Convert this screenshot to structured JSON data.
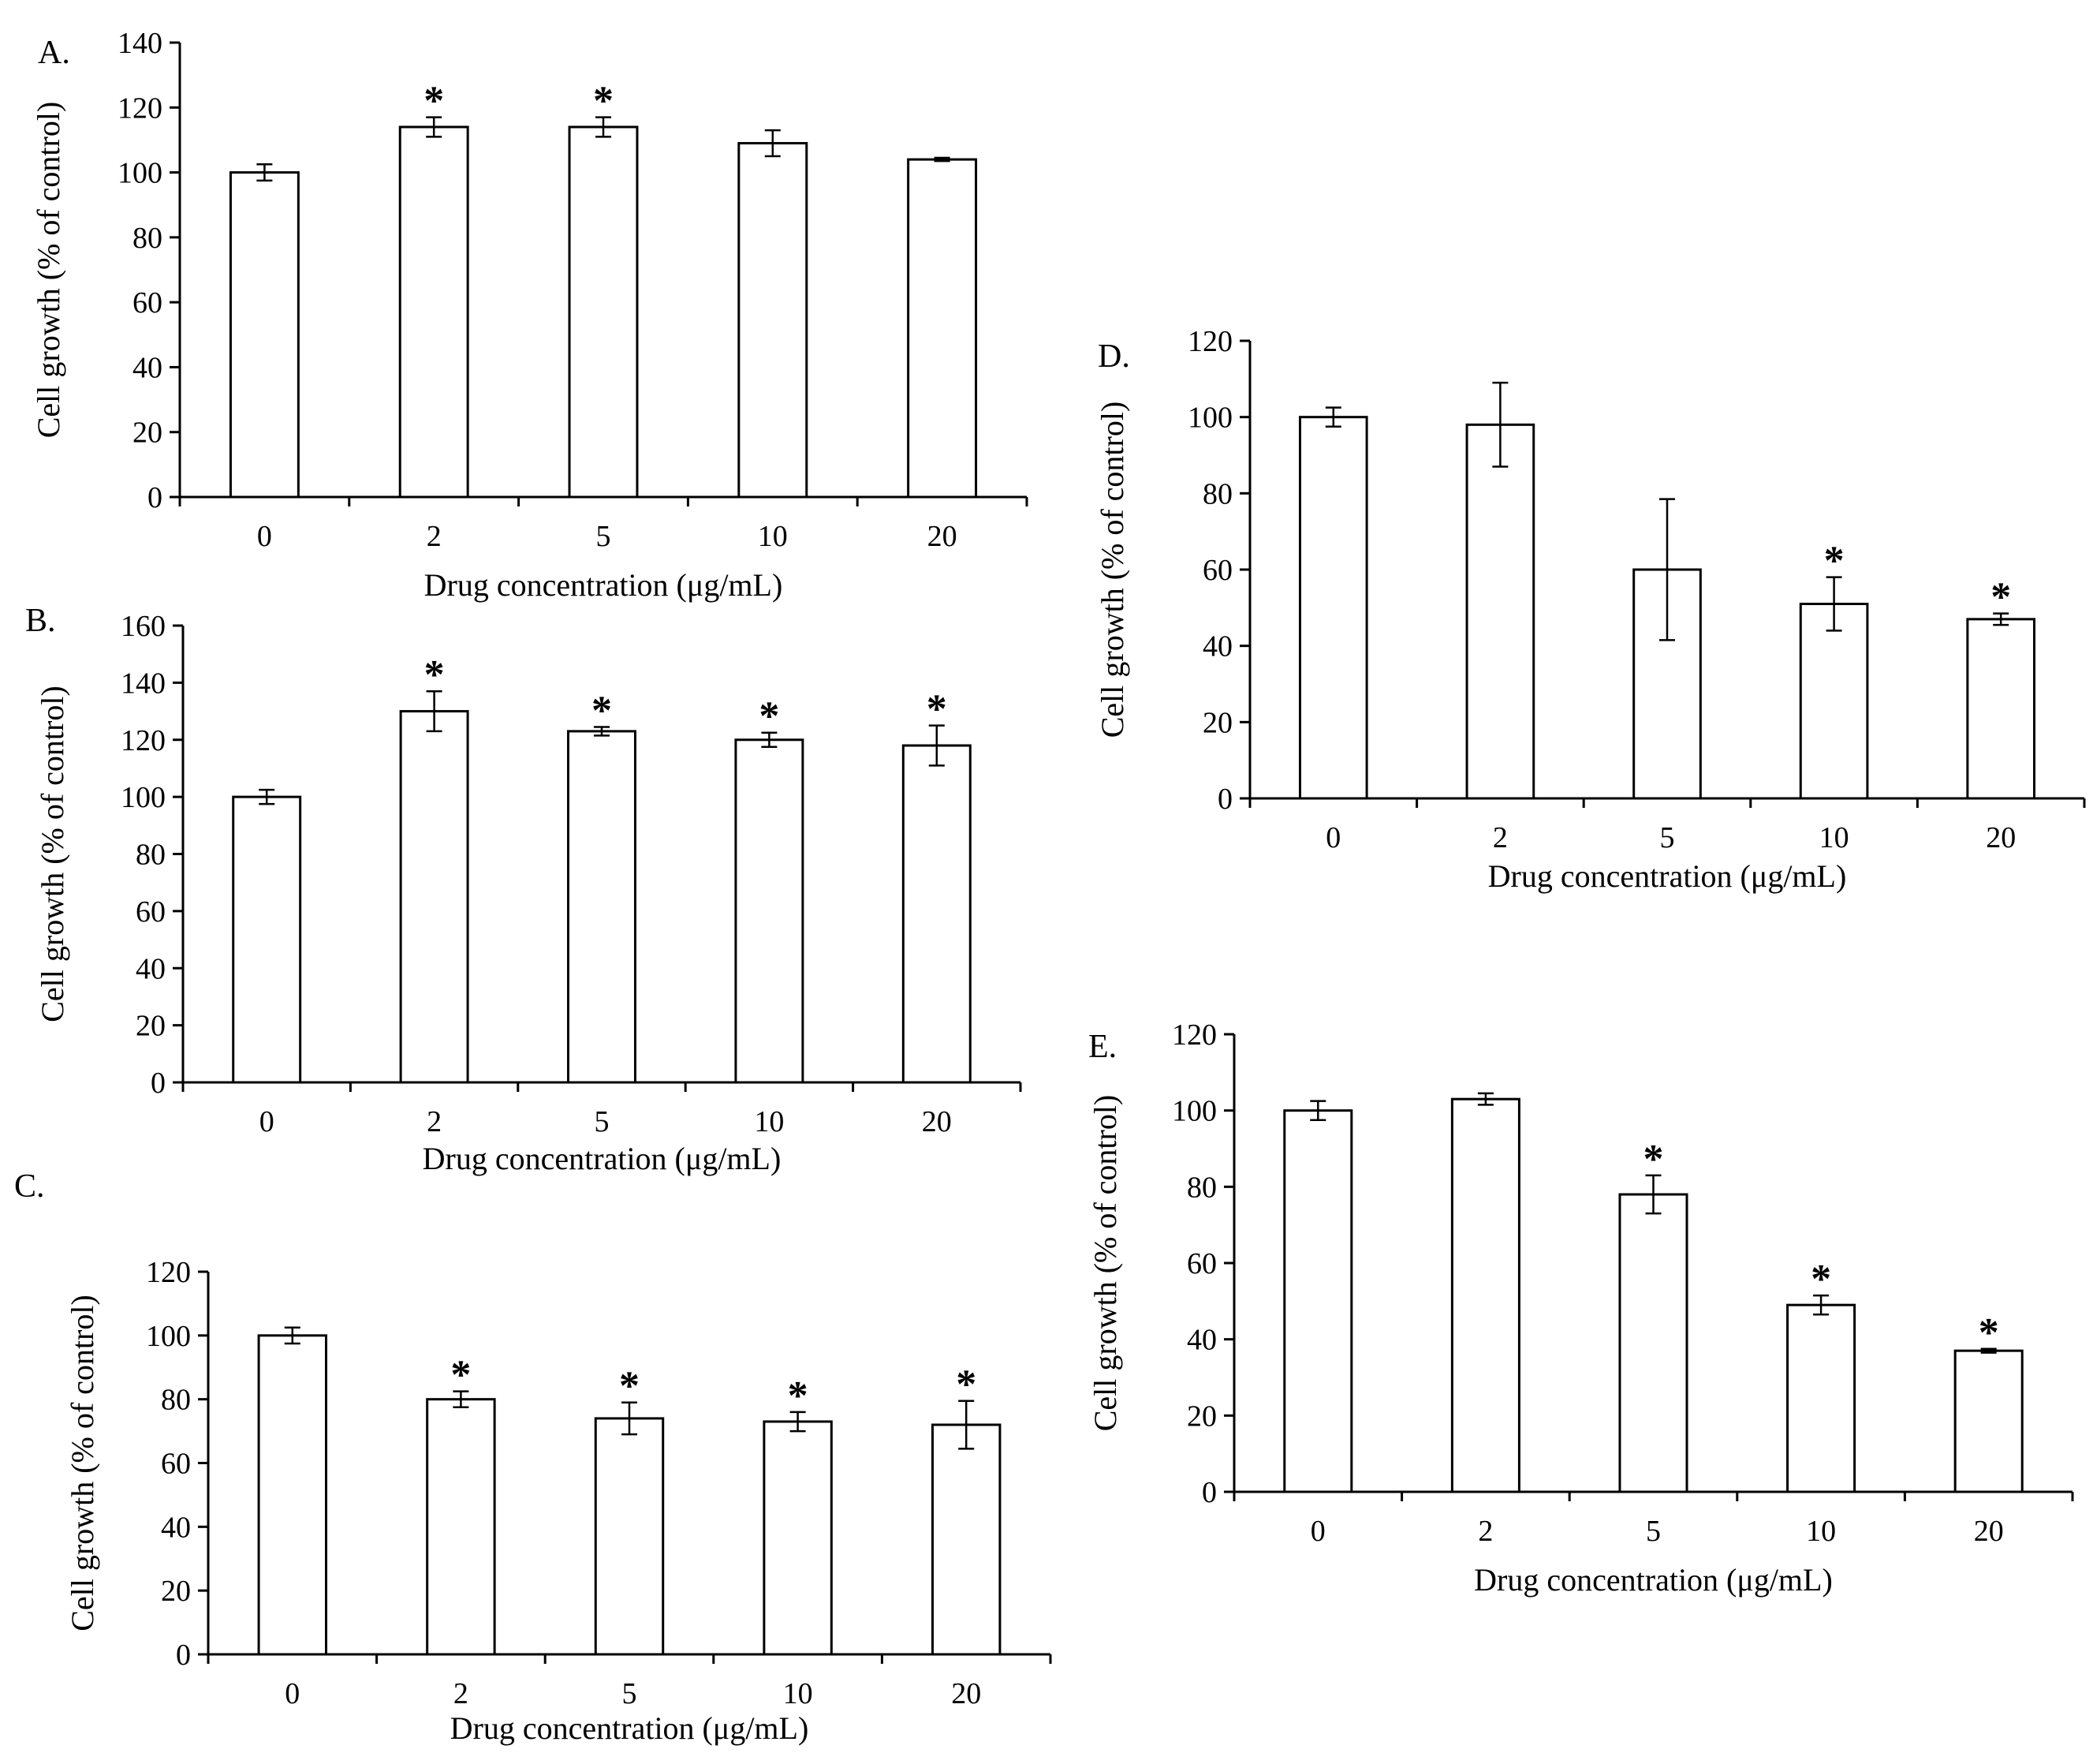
{
  "chart_data": [
    {
      "type": "bar",
      "panel": "A.",
      "categories": [
        "0",
        "2",
        "5",
        "10",
        "20"
      ],
      "values": [
        100,
        114,
        114,
        109,
        104
      ],
      "errors": [
        2.5,
        3,
        3,
        4,
        0.5
      ],
      "significance": [
        "",
        "*",
        "*",
        "",
        ""
      ],
      "yticks": [
        "0",
        "20",
        "40",
        "60",
        "80",
        "100",
        "120",
        "140"
      ],
      "ylim": [
        0,
        140
      ],
      "xlabel": "Drug concentration (μg/mL)",
      "ylabel": "Cell growth (% of control)"
    },
    {
      "type": "bar",
      "panel": "B.",
      "categories": [
        "0",
        "2",
        "5",
        "10",
        "20"
      ],
      "values": [
        100,
        130,
        123,
        120,
        118
      ],
      "errors": [
        2.5,
        7,
        1.5,
        2.5,
        7
      ],
      "significance": [
        "",
        "*",
        "*",
        "*",
        "*"
      ],
      "yticks": [
        "0",
        "20",
        "40",
        "60",
        "80",
        "100",
        "120",
        "140",
        "160"
      ],
      "ylim": [
        0,
        160
      ],
      "xlabel": "Drug concentration (μg/mL)",
      "ylabel": "Cell growth (% of control)"
    },
    {
      "type": "bar",
      "panel": "C.",
      "categories": [
        "0",
        "2",
        "5",
        "10",
        "20"
      ],
      "values": [
        100,
        80,
        74,
        73,
        72
      ],
      "errors": [
        2.5,
        2.5,
        5,
        3,
        7.5
      ],
      "significance": [
        "",
        "*",
        "*",
        "*",
        "*"
      ],
      "yticks": [
        "0",
        "20",
        "40",
        "60",
        "80",
        "100",
        "120"
      ],
      "ylim": [
        0,
        120
      ],
      "xlabel": "Drug concentration (μg/mL)",
      "ylabel": "Cell growth (% of control)"
    },
    {
      "type": "bar",
      "panel": "D.",
      "categories": [
        "0",
        "2",
        "5",
        "10",
        "20"
      ],
      "values": [
        100,
        98,
        60,
        51,
        47
      ],
      "errors": [
        2.5,
        11,
        18.5,
        7,
        1.5
      ],
      "significance": [
        "",
        "",
        "",
        "*",
        "*"
      ],
      "yticks": [
        "0",
        "20",
        "40",
        "60",
        "80",
        "100",
        "120"
      ],
      "ylim": [
        0,
        120
      ],
      "xlabel": "Drug concentration (μg/mL)",
      "ylabel": "Cell growth (% of control)"
    },
    {
      "type": "bar",
      "panel": "E.",
      "categories": [
        "0",
        "2",
        "5",
        "10",
        "20"
      ],
      "values": [
        100,
        103,
        78,
        49,
        37
      ],
      "errors": [
        2.5,
        1.5,
        5,
        2.5,
        0.5
      ],
      "significance": [
        "",
        "",
        "*",
        "*",
        "*"
      ],
      "yticks": [
        "0",
        "20",
        "40",
        "60",
        "80",
        "100",
        "120"
      ],
      "ylim": [
        0,
        120
      ],
      "xlabel": "Drug concentration (μg/mL)",
      "ylabel": "Cell growth (% of control)"
    }
  ]
}
